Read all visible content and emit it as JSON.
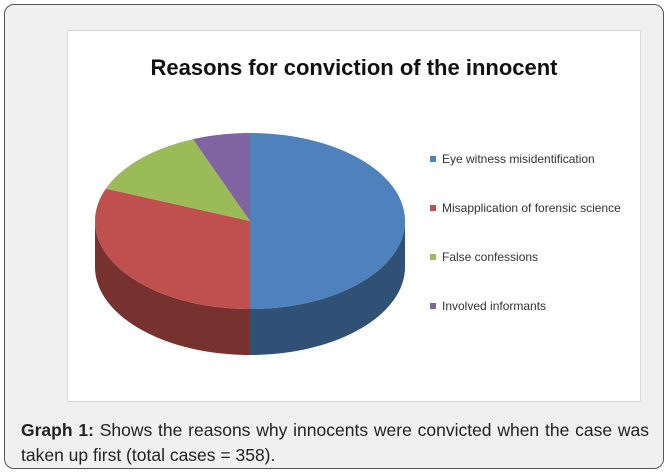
{
  "chart_data": {
    "type": "pie",
    "title": "Reasons for conviction of the innocent",
    "categories": [
      "Eye witness misidentification",
      "Misapplication of forensic science",
      "False confessions",
      "Involved informants"
    ],
    "values": [
      50,
      31,
      13,
      6
    ],
    "colors": [
      "#4f81bd",
      "#c0504d",
      "#9bbb59",
      "#8064a2"
    ],
    "legend": "right"
  },
  "caption": {
    "label": "Graph 1:",
    "text": "Shows the reasons why innocents were convicted when the case was taken up first (total cases = 358)."
  }
}
